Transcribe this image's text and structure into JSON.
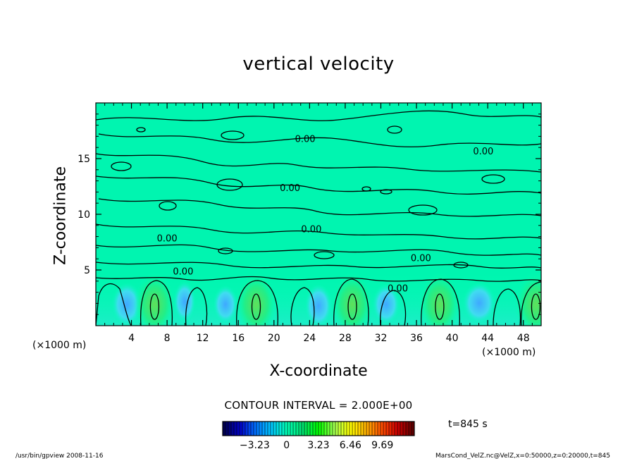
{
  "chart_data": {
    "type": "heatmap",
    "title": "vertical velocity",
    "xlabel": "X-coordinate",
    "ylabel": "Z-coordinate",
    "x_unit": "(×1000 m)",
    "y_unit": "(×1000 m)",
    "xlim": [
      0,
      50
    ],
    "ylim": [
      0,
      20
    ],
    "x_ticks": [
      4,
      8,
      12,
      16,
      20,
      24,
      28,
      32,
      36,
      40,
      44,
      48
    ],
    "y_ticks": [
      5,
      10,
      15
    ],
    "contour_interval_text": "CONTOUR INTERVAL = 2.000E+00",
    "contour_labels": [
      "0.00",
      "0.00",
      "0.00",
      "0.00",
      "0.00",
      "0.00",
      "0.00",
      "0.00"
    ],
    "contour_label_positions": [
      {
        "x": 23.5,
        "z": 16.7
      },
      {
        "x": 43.5,
        "z": 15.6
      },
      {
        "x": 21.8,
        "z": 12.3
      },
      {
        "x": 24.2,
        "z": 8.6
      },
      {
        "x": 8.0,
        "z": 7.8
      },
      {
        "x": 36.5,
        "z": 6.0
      },
      {
        "x": 9.8,
        "z": 4.8
      },
      {
        "x": 33.9,
        "z": 3.3
      }
    ],
    "updraft_cores_x": [
      6.6,
      18.0,
      28.8,
      38.6,
      49.4
    ],
    "colorbar": {
      "tick_labels": [
        "-3.23",
        "0",
        "3.23",
        "6.46",
        "9.69"
      ],
      "range": [
        -6.46,
        12.92
      ],
      "colors": [
        "#000050",
        "#0000c8",
        "#0070ff",
        "#00c8ff",
        "#00ffb4",
        "#00e070",
        "#00ff00",
        "#a0ff50",
        "#ffff00",
        "#ffb400",
        "#ff5000",
        "#d00000",
        "#600000"
      ]
    },
    "time_label": "t=845 s"
  },
  "footer": {
    "left": "/usr/bin/gpview   2008-11-16",
    "right": "MarsCond_VelZ.nc@VelZ,x=0:50000,z=0:20000,t=845"
  }
}
